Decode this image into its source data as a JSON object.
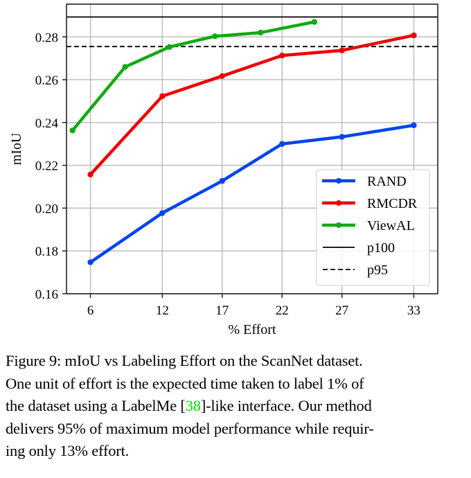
{
  "chart_data": {
    "type": "line",
    "title": "",
    "xlabel": "% Effort",
    "ylabel": "mIoU",
    "xlim": [
      4.0,
      35.0
    ],
    "ylim": [
      0.16,
      0.2953
    ],
    "x_ticks": [
      6,
      12,
      17,
      22,
      27,
      33
    ],
    "x_tick_labels": [
      "6",
      "12",
      "17",
      "22",
      "27",
      "33"
    ],
    "y_ticks": [
      0.16,
      0.18,
      0.2,
      0.22,
      0.24,
      0.26,
      0.28
    ],
    "y_tick_labels": [
      "0.16",
      "0.18",
      "0.20",
      "0.22",
      "0.24",
      "0.26",
      "0.28"
    ],
    "grid": true,
    "legend_position": "lower-right",
    "series": [
      {
        "name": "RAND",
        "color": "#0044ee",
        "x": [
          6,
          12,
          17,
          22,
          27,
          33
        ],
        "y": [
          0.1747,
          0.1977,
          0.2127,
          0.23,
          0.2333,
          0.2387
        ]
      },
      {
        "name": "RMCDR",
        "color": "#ee0000",
        "x": [
          6,
          12,
          17,
          22,
          27,
          33
        ],
        "y": [
          0.2157,
          0.2523,
          0.2617,
          0.2713,
          0.2737,
          0.2807
        ]
      },
      {
        "name": "ViewAL",
        "color": "#11aa11",
        "x": [
          4.5,
          8.9,
          12.6,
          16.4,
          20.2,
          24.7
        ],
        "y": [
          0.2363,
          0.266,
          0.2753,
          0.2803,
          0.282,
          0.287
        ]
      }
    ],
    "reference_lines": [
      {
        "name": "p100",
        "y": 0.2893,
        "style": "solid",
        "color": "#000000"
      },
      {
        "name": "p95",
        "y": 0.2755,
        "style": "dashed",
        "color": "#000000"
      }
    ]
  },
  "caption": {
    "lines": [
      [
        "Figure 9: mIoU vs Labeling Effort on the ScanNet dataset."
      ],
      [
        "One unit of effort is the expected time taken to label 1% of"
      ],
      [
        "the dataset using a LabelMe [",
        "38",
        "]-like interface. Our method"
      ],
      [
        "delivers 95% of maximum model performance while requir-"
      ],
      [
        "ing only 13% effort."
      ]
    ],
    "citation_color": "#00dd00"
  }
}
